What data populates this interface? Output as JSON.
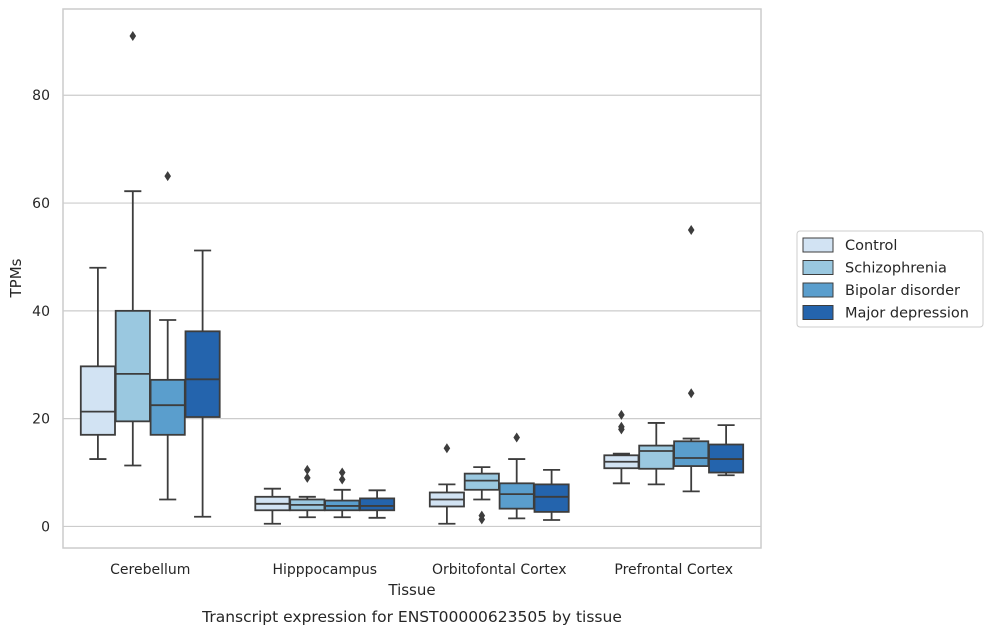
{
  "chart_data": {
    "type": "box",
    "title": "",
    "caption": "Transcript expression for ENST00000623505 by tissue",
    "xlabel": "Tissue",
    "ylabel": "TPMs",
    "ylim": [
      -4,
      96
    ],
    "yticks": [
      0,
      20,
      40,
      60,
      80
    ],
    "grid": "horizontal",
    "legend_position": "right",
    "categories": [
      "Cerebellum",
      "Hipppocampus",
      "Orbitofontal Cortex",
      "Prefrontal Cortex"
    ],
    "series": [
      {
        "name": "Control",
        "color": "#d2e3f3",
        "boxes": [
          {
            "whislo": 12.5,
            "q1": 17,
            "med": 21.3,
            "q3": 29.7,
            "whishi": 48,
            "fliers": []
          },
          {
            "whislo": 0.5,
            "q1": 3,
            "med": 4.2,
            "q3": 5.5,
            "whishi": 7,
            "fliers": []
          },
          {
            "whislo": 0.5,
            "q1": 3.7,
            "med": 5,
            "q3": 6.3,
            "whishi": 7.8,
            "fliers": [
              14.5
            ]
          },
          {
            "whislo": 8,
            "q1": 10.8,
            "med": 12,
            "q3": 13.2,
            "whishi": 13.5,
            "fliers": [
              20.7,
              18.5,
              18
            ]
          }
        ]
      },
      {
        "name": "Schizophrenia",
        "color": "#9ac8e0",
        "boxes": [
          {
            "whislo": 11.3,
            "q1": 19.5,
            "med": 28.3,
            "q3": 40,
            "whishi": 62.2,
            "fliers": [
              91
            ]
          },
          {
            "whislo": 1.7,
            "q1": 3,
            "med": 4,
            "q3": 5,
            "whishi": 5.5,
            "fliers": [
              10.5,
              9
            ]
          },
          {
            "whislo": 5,
            "q1": 6.8,
            "med": 8.5,
            "q3": 9.8,
            "whishi": 11,
            "fliers": [
              2,
              1.3
            ]
          },
          {
            "whislo": 7.8,
            "q1": 10.7,
            "med": 14,
            "q3": 15,
            "whishi": 19.2,
            "fliers": []
          }
        ]
      },
      {
        "name": "Bipolar disorder",
        "color": "#5a9ecd",
        "boxes": [
          {
            "whislo": 5,
            "q1": 17,
            "med": 22.5,
            "q3": 27.2,
            "whishi": 38.3,
            "fliers": [
              65
            ]
          },
          {
            "whislo": 1.7,
            "q1": 3,
            "med": 3.8,
            "q3": 4.8,
            "whishi": 6.8,
            "fliers": [
              10,
              8.7
            ]
          },
          {
            "whislo": 1.5,
            "q1": 3.3,
            "med": 6,
            "q3": 8,
            "whishi": 12.5,
            "fliers": [
              16.5
            ]
          },
          {
            "whislo": 6.5,
            "q1": 11.2,
            "med": 12.7,
            "q3": 15.8,
            "whishi": 16.3,
            "fliers": [
              55,
              24.7
            ]
          }
        ]
      },
      {
        "name": "Major depression",
        "color": "#2464ad",
        "boxes": [
          {
            "whislo": 1.8,
            "q1": 20.3,
            "med": 27.3,
            "q3": 36.2,
            "whishi": 51.2,
            "fliers": []
          },
          {
            "whislo": 1.6,
            "q1": 3,
            "med": 3.8,
            "q3": 5.2,
            "whishi": 6.7,
            "fliers": []
          },
          {
            "whislo": 1.2,
            "q1": 2.7,
            "med": 5.5,
            "q3": 7.8,
            "whishi": 10.5,
            "fliers": []
          },
          {
            "whislo": 9.5,
            "q1": 10,
            "med": 12.5,
            "q3": 15.2,
            "whishi": 18.8,
            "fliers": []
          }
        ]
      }
    ]
  }
}
